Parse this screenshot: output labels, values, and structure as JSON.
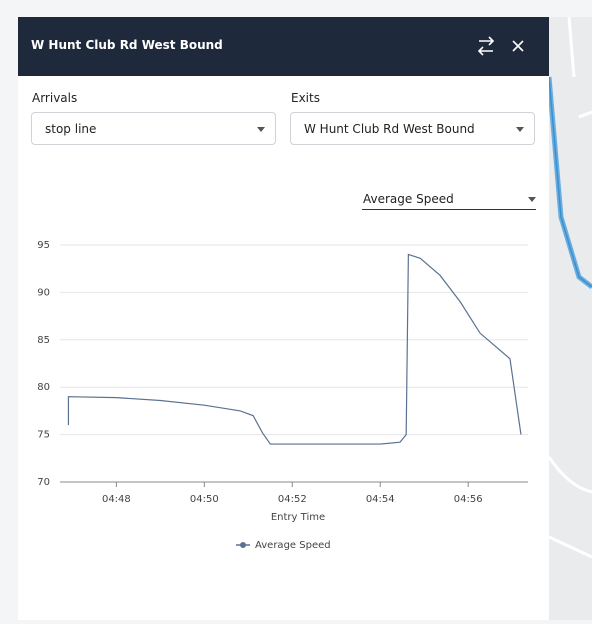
{
  "header": {
    "title": "W Hunt Club Rd West Bound"
  },
  "filters": {
    "arrivals": {
      "label": "Arrivals",
      "value": "stop line"
    },
    "exits": {
      "label": "Exits",
      "value": "W Hunt Club Rd West Bound"
    },
    "metric": "Average Speed"
  },
  "chart_data": {
    "type": "line",
    "x_label": "Entry Time",
    "x": [
      286.91,
      286.91,
      288,
      289,
      290,
      290.82,
      291.11,
      291.32,
      291.5,
      292.18,
      294,
      294.45,
      294.59,
      294.64,
      294.91,
      295.36,
      295.82,
      296.27,
      296.95,
      297.2
    ],
    "series": [
      {
        "name": "Average Speed",
        "color": "#5a7290",
        "values": [
          76,
          79,
          78.9,
          78.6,
          78.1,
          77.5,
          77,
          75.2,
          74,
          74,
          74,
          74.2,
          75,
          94,
          93.6,
          91.8,
          89,
          85.7,
          83,
          75
        ]
      }
    ],
    "xlim": [
      286.9,
      297.36
    ],
    "ylim": [
      70,
      95
    ],
    "xticks": [
      {
        "value": 288,
        "label": "04:48"
      },
      {
        "value": 290,
        "label": "04:50"
      },
      {
        "value": 292,
        "label": "04:52"
      },
      {
        "value": 294,
        "label": "04:54"
      },
      {
        "value": 296,
        "label": "04:56"
      }
    ],
    "yticks": [
      70,
      75,
      80,
      85,
      90,
      95
    ],
    "grid": true
  }
}
